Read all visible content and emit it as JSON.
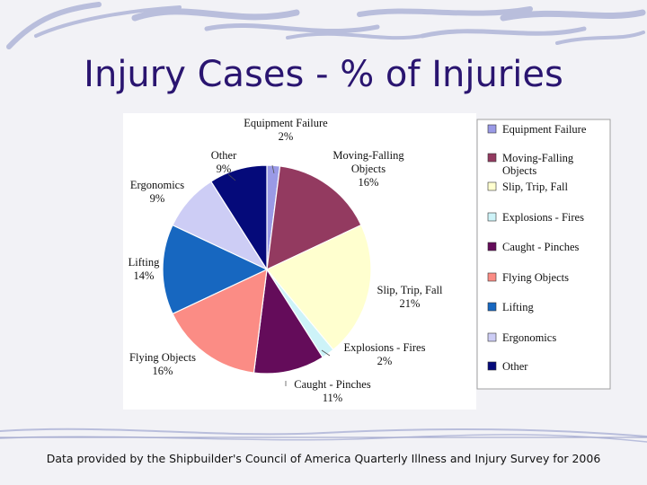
{
  "slide": {
    "title": "Injury Cases - % of Injuries",
    "footer": "Data provided by the Shipbuilder's Council of America Quarterly Illness and Injury Survey for 2006"
  },
  "chart_data": {
    "type": "pie",
    "title": "Injury Cases - % of Injuries",
    "unit": "%",
    "legend_position": "right",
    "slices": [
      {
        "label": "Equipment Failure",
        "label_lines": [
          "Equipment Failure"
        ],
        "value": 2,
        "value_label": "2%",
        "color": "#9a9ae6"
      },
      {
        "label": "Moving-Falling Objects",
        "label_lines": [
          "Moving-Falling",
          "Objects"
        ],
        "value": 16,
        "value_label": "16%",
        "color": "#933a60"
      },
      {
        "label": "Slip, Trip, Fall",
        "label_lines": [
          "Slip, Trip, Fall"
        ],
        "value": 21,
        "value_label": "21%",
        "color": "#ffffcf"
      },
      {
        "label": "Explosions - Fires",
        "label_lines": [
          "Explosions - Fires"
        ],
        "value": 2,
        "value_label": "2%",
        "color": "#cdf3f8"
      },
      {
        "label": "Caught - Pinches",
        "label_lines": [
          "Caught - Pinches"
        ],
        "value": 11,
        "value_label": "11%",
        "color": "#640c5a"
      },
      {
        "label": "Flying Objects",
        "label_lines": [
          "Flying Objects"
        ],
        "value": 16,
        "value_label": "16%",
        "color": "#fb8c85"
      },
      {
        "label": "Lifting",
        "label_lines": [
          "Lifting"
        ],
        "value": 14,
        "value_label": "14%",
        "color": "#1767c0"
      },
      {
        "label": "Ergonomics",
        "label_lines": [
          "Ergonomics"
        ],
        "value": 9,
        "value_label": "9%",
        "color": "#cdcdf5"
      },
      {
        "label": "Other",
        "label_lines": [
          "Other"
        ],
        "value": 9,
        "value_label": "9%",
        "color": "#050a7a"
      }
    ]
  }
}
